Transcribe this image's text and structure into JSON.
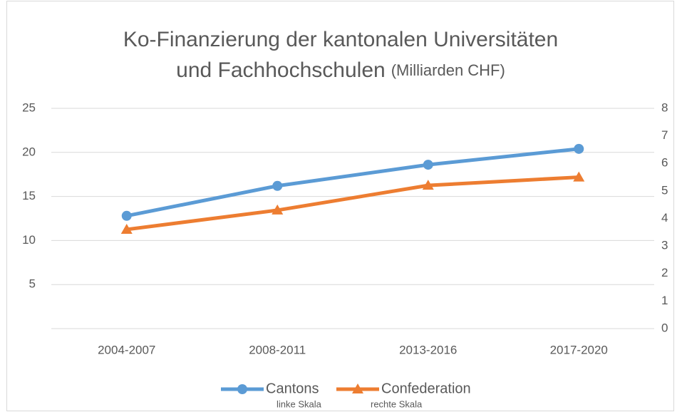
{
  "chart_data": {
    "type": "line",
    "title": "Ko-Finanzierung der kantonalen Universitäten",
    "title_line2": "und Fachhochschulen",
    "subtitle": "(Milliarden CHF)",
    "categories": [
      "2004-2007",
      "2008-2011",
      "2013-2016",
      "2017-2020"
    ],
    "series": [
      {
        "name": "Cantons",
        "color": "#5b9bd5",
        "marker": "circle",
        "axis": "y",
        "scale_note": "linke Skala",
        "values": [
          12.8,
          16.2,
          18.6,
          20.4
        ]
      },
      {
        "name": "Confederation",
        "color": "#ed7d31",
        "marker": "triangle",
        "axis": "y2",
        "scale_note": "rechte Skala",
        "values": [
          3.6,
          4.3,
          5.2,
          5.5
        ]
      }
    ],
    "ylim": [
      0,
      25
    ],
    "yticks": [
      5,
      10,
      15,
      20,
      25
    ],
    "y2lim": [
      0,
      8
    ],
    "y2ticks": [
      0,
      1,
      2,
      3,
      4,
      5,
      6,
      7,
      8
    ],
    "grid": true,
    "legend": "bottom"
  }
}
